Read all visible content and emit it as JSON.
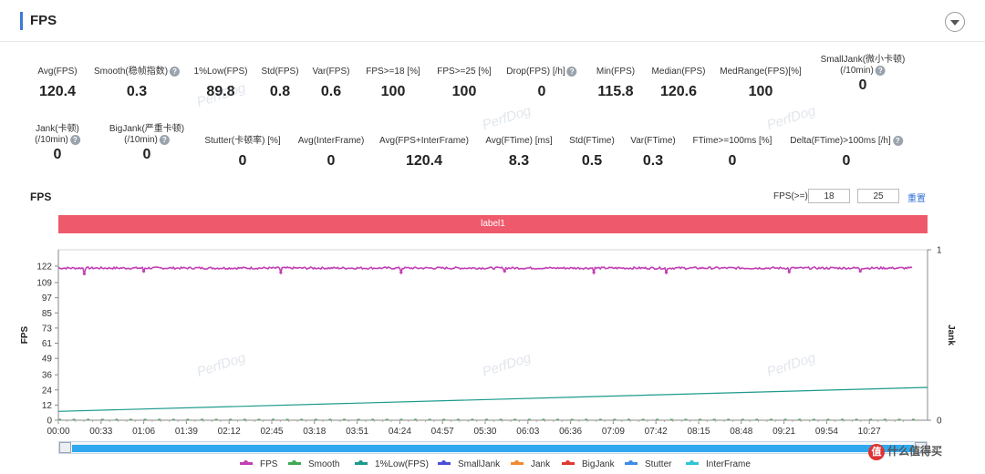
{
  "panel": {
    "title": "FPS"
  },
  "stats_row1": [
    {
      "label": "Avg(FPS)",
      "value": "120.4",
      "help": false
    },
    {
      "label": "Smooth(稳帧指数)",
      "value": "0.3",
      "help": true
    },
    {
      "label": "1%Low(FPS)",
      "value": "89.8",
      "help": false
    },
    {
      "label": "Std(FPS)",
      "value": "0.8",
      "help": false
    },
    {
      "label": "Var(FPS)",
      "value": "0.6",
      "help": false
    },
    {
      "label": "FPS>=18 [%]",
      "value": "100",
      "help": false
    },
    {
      "label": "FPS>=25 [%]",
      "value": "100",
      "help": false
    },
    {
      "label": "Drop(FPS) [/h]",
      "value": "0",
      "help": true
    },
    {
      "label": "Min(FPS)",
      "value": "115.8",
      "help": false
    },
    {
      "label": "Median(FPS)",
      "value": "120.6",
      "help": false
    },
    {
      "label": "MedRange(FPS)[%]",
      "value": "100",
      "help": false
    },
    {
      "label": "SmallJank(微小卡顿)",
      "label2": "(/10min)",
      "value": "0",
      "help": true
    }
  ],
  "stats_row2": [
    {
      "label": "Jank(卡顿)",
      "label2": "(/10min)",
      "value": "0",
      "help": true
    },
    {
      "label": "BigJank(严重卡顿)",
      "label2": "(/10min)",
      "value": "0",
      "help": true
    },
    {
      "label": "Stutter(卡顿率) [%]",
      "value": "0",
      "help": false
    },
    {
      "label": "Avg(InterFrame)",
      "value": "0",
      "help": false
    },
    {
      "label": "Avg(FPS+InterFrame)",
      "value": "120.4",
      "help": false
    },
    {
      "label": "Avg(FTime) [ms]",
      "value": "8.3",
      "help": false
    },
    {
      "label": "Std(FTime)",
      "value": "0.5",
      "help": false
    },
    {
      "label": "Var(FTime)",
      "value": "0.3",
      "help": false
    },
    {
      "label": "FTime>=100ms [%]",
      "value": "0",
      "help": false
    },
    {
      "label": "Delta(FTime)>100ms [/h]",
      "value": "0",
      "help": true
    }
  ],
  "watermark": "PerfDog",
  "chart_section": {
    "title": "FPS",
    "threshold_label": "FPS(>=)",
    "threshold_low": "18",
    "threshold_high": "25",
    "reset_label": "重置",
    "label_bar": "label1"
  },
  "brand": {
    "badge": "值",
    "text": "什么值得买"
  },
  "chart_data": {
    "type": "line",
    "ylabel": "FPS",
    "ylabel_right": "Jank",
    "y_ticks": [
      0,
      12,
      24,
      36,
      49,
      61,
      73,
      85,
      97,
      109,
      122
    ],
    "ylim": [
      0,
      135
    ],
    "y2_ticks": [
      0,
      1
    ],
    "x_ticks": [
      "00:00",
      "00:33",
      "01:06",
      "01:39",
      "02:12",
      "02:45",
      "03:18",
      "03:51",
      "04:24",
      "04:57",
      "05:30",
      "06:03",
      "06:36",
      "07:09",
      "07:42",
      "08:15",
      "08:48",
      "09:21",
      "09:54",
      "10:27"
    ],
    "duration_s": 660,
    "fps_level": 120.5,
    "fps_dips": [
      {
        "t": 20,
        "v": 116
      },
      {
        "t": 66,
        "v": 118
      },
      {
        "t": 172,
        "v": 117
      },
      {
        "t": 265,
        "v": 117
      },
      {
        "t": 345,
        "v": 118
      },
      {
        "t": 414,
        "v": 117
      },
      {
        "t": 470,
        "v": 117
      },
      {
        "t": 565,
        "v": 117.5
      },
      {
        "t": 620,
        "v": 118
      }
    ],
    "low1_start": 7,
    "low1_end": 26,
    "series": [
      {
        "name": "FPS",
        "color": "#c23fb5"
      },
      {
        "name": "Smooth",
        "color": "#3cab52"
      },
      {
        "name": "1%Low(FPS)",
        "color": "#1b9a8c"
      },
      {
        "name": "SmallJank",
        "color": "#4b4fd6"
      },
      {
        "name": "Jank",
        "color": "#f28a30"
      },
      {
        "name": "BigJank",
        "color": "#e03a2f"
      },
      {
        "name": "Stutter",
        "color": "#3e8ce8"
      },
      {
        "name": "InterFrame",
        "color": "#2fc4d6"
      }
    ],
    "legend_position": "bottom"
  }
}
